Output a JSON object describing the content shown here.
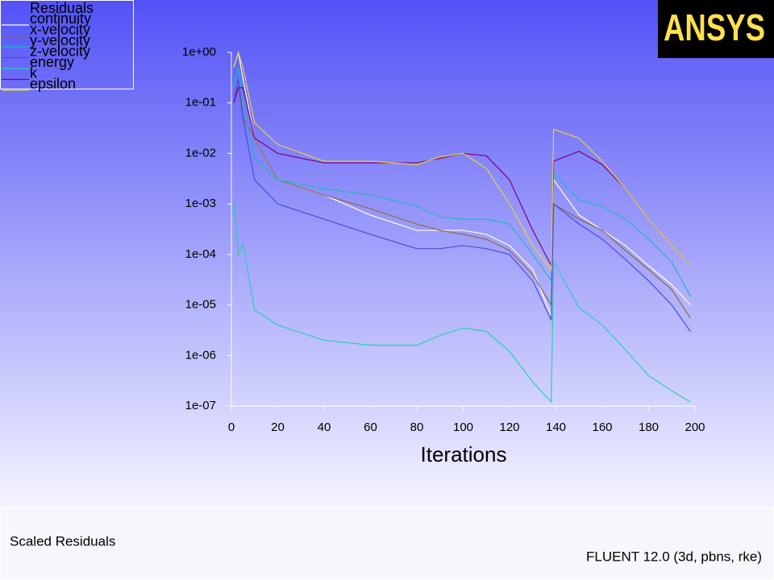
{
  "chart_data": {
    "type": "line",
    "legend_title": "Residuals",
    "xlabel": "Iterations",
    "x": [
      1,
      3,
      5,
      10,
      20,
      40,
      60,
      80,
      90,
      100,
      110,
      120,
      130,
      138,
      139,
      150,
      160,
      170,
      180,
      190,
      198
    ],
    "series": [
      {
        "name": "continuity",
        "color": "#ffffff",
        "values": [
          0.5,
          1,
          0.3,
          0.02,
          0.003,
          0.0015,
          0.0006,
          0.0003,
          0.0003,
          0.0003,
          0.00025,
          0.00015,
          5e-05,
          6e-06,
          0.003,
          0.0006,
          0.0003,
          0.00015,
          6e-05,
          2.5e-05,
          1e-05
        ]
      },
      {
        "name": "x-velocity",
        "color": "#8c6a4a",
        "values": [
          0.1,
          0.2,
          0.05,
          0.02,
          0.003,
          0.0015,
          0.0008,
          0.0004,
          0.0003,
          0.00025,
          0.0002,
          0.00012,
          4e-05,
          1e-05,
          0.001,
          0.0005,
          0.0003,
          0.00012,
          5e-05,
          2e-05,
          5.5e-06
        ]
      },
      {
        "name": "y-velocity",
        "color": "#1fb8c0",
        "values": [
          0.2,
          0.5,
          0.1,
          0.008,
          0.003,
          0.002,
          0.0015,
          0.0009,
          0.00055,
          0.0005,
          0.0005,
          0.0004,
          0.0001,
          3e-05,
          0.004,
          0.0012,
          0.0009,
          0.0005,
          0.0002,
          7e-05,
          1.5e-05
        ]
      },
      {
        "name": "z-velocity",
        "color": "#4b4be0",
        "values": [
          0.1,
          0.3,
          0.05,
          0.003,
          0.001,
          0.0005,
          0.00025,
          0.00013,
          0.00013,
          0.00015,
          0.00013,
          0.0001,
          3e-05,
          5e-06,
          0.001,
          0.0004,
          0.0002,
          8e-05,
          3e-05,
          1e-05,
          3e-06
        ]
      },
      {
        "name": "energy",
        "color": "#2ccfb0",
        "values": [
          0.001,
          0.0001,
          0.00016,
          8e-06,
          4e-06,
          2e-06,
          1.6e-06,
          1.6e-06,
          2.5e-06,
          3.5e-06,
          3e-06,
          1.2e-06,
          3e-07,
          1.2e-07,
          7e-05,
          9e-06,
          4e-06,
          1.3e-06,
          4e-07,
          2e-07,
          1.2e-07
        ]
      },
      {
        "name": "k",
        "color": "#800080",
        "values": [
          0.1,
          0.2,
          0.2,
          0.02,
          0.01,
          0.0065,
          0.0065,
          0.0065,
          0.008,
          0.01,
          0.009,
          0.003,
          0.0003,
          6e-05,
          0.007,
          0.011,
          0.006,
          0.002,
          0.0005,
          0.00015,
          6e-05
        ]
      },
      {
        "name": "epsilon",
        "color": "#e6d23c",
        "values": [
          0.5,
          1,
          0.5,
          0.04,
          0.015,
          0.007,
          0.007,
          0.006,
          0.0085,
          0.01,
          0.005,
          0.001,
          0.00015,
          5e-05,
          0.03,
          0.02,
          0.007,
          0.002,
          0.0005,
          0.00015,
          6e-05
        ]
      }
    ],
    "xlim": [
      0,
      200
    ],
    "xticks": [
      0,
      20,
      40,
      60,
      80,
      100,
      120,
      140,
      160,
      180,
      200
    ],
    "ylim": [
      1e-07,
      1
    ],
    "yscale": "log",
    "yticks": [
      {
        "value": 1e-07,
        "label": "1e-07"
      },
      {
        "value": 1e-06,
        "label": "1e-06"
      },
      {
        "value": 1e-05,
        "label": "1e-05"
      },
      {
        "value": 0.0001,
        "label": "1e-04"
      },
      {
        "value": 0.001,
        "label": "1e-03"
      },
      {
        "value": 0.01,
        "label": "1e-02"
      },
      {
        "value": 0.1,
        "label": "1e-01"
      },
      {
        "value": 1,
        "label": "1e+00"
      }
    ],
    "grid": false,
    "legend": "top-left"
  },
  "page": {
    "logo": "ANSYS",
    "caption": "Scaled Residuals",
    "solver": "FLUENT 12.0 (3d, pbns, rke)"
  }
}
